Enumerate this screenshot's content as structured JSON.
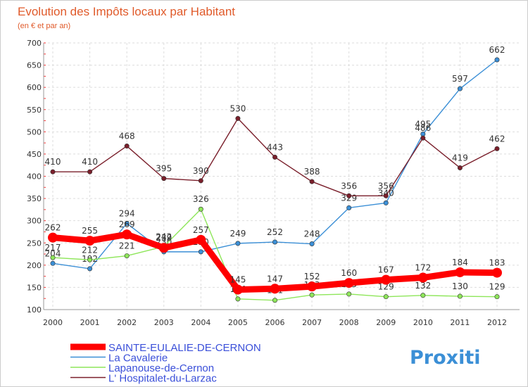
{
  "chart_data": {
    "type": "line",
    "title": "Evolution des Impôts locaux par Habitant",
    "subtitle": "(en € et par an)",
    "categories": [
      "2000",
      "2001",
      "2002",
      "2003",
      "2004",
      "2005",
      "2006",
      "2007",
      "2008",
      "2009",
      "2010",
      "2011",
      "2012"
    ],
    "ylim": [
      100,
      700
    ],
    "yticks": [
      100,
      150,
      200,
      250,
      300,
      350,
      400,
      450,
      500,
      550,
      600,
      650,
      700
    ],
    "series": [
      {
        "name": "SAINTE-EULALIE-DE-CERNON",
        "color": "#ff0000",
        "highlight": true,
        "values": [
          262,
          255,
          269,
          239,
          257,
          145,
          147,
          152,
          160,
          167,
          172,
          184,
          183
        ]
      },
      {
        "name": "La Cavalerie",
        "color": "#3b8fd6",
        "values": [
          204,
          192,
          294,
          230,
          230,
          249,
          252,
          248,
          329,
          340,
          495,
          597,
          662
        ]
      },
      {
        "name": "Lapanouse-de-Cernon",
        "color": "#8ee65a",
        "values": [
          217,
          212,
          221,
          242,
          326,
          124,
          121,
          133,
          135,
          129,
          132,
          130,
          129
        ]
      },
      {
        "name": "L' Hospitalet-du-Larzac",
        "color": "#7a1f2b",
        "values": [
          410,
          410,
          468,
          395,
          390,
          530,
          443,
          388,
          356,
          356,
          486,
          419,
          462
        ]
      }
    ],
    "legend_position": "bottom-left",
    "logo_text": "Proxiti"
  }
}
